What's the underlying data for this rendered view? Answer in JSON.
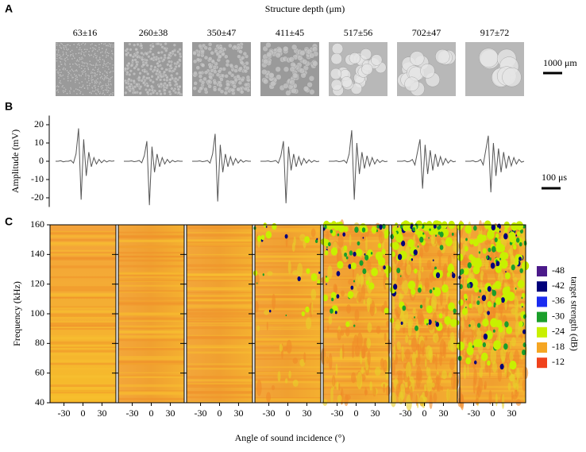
{
  "chart_data": [
    {
      "type": "image",
      "label": "A",
      "title": "Structure depth (μm)",
      "categories": [
        "63±16",
        "260±38",
        "350±47",
        "411±45",
        "517±56",
        "702±47",
        "917±72"
      ],
      "scale_bar": "1000 μm"
    },
    {
      "type": "line",
      "label": "B",
      "ylabel": "Amplitude (mV)",
      "ylim": [
        -25,
        25
      ],
      "yticks": [
        20,
        10,
        0,
        -10,
        -20
      ],
      "scale_bar": "100 μs",
      "color": "#555555",
      "series": [
        {
          "values": [
            0,
            0,
            0.3,
            -0.3,
            0,
            0,
            0.5,
            -1,
            4,
            18,
            -21,
            12,
            -8,
            5,
            -3,
            2,
            -1.5,
            1,
            -0.8,
            0.6,
            -0.4,
            0.3,
            0,
            0.2
          ]
        },
        {
          "values": [
            0,
            0,
            0,
            0.2,
            -0.2,
            0,
            0.4,
            -0.8,
            3,
            11,
            -24,
            8,
            -6,
            4,
            -3,
            2,
            -1.5,
            1,
            -0.8,
            0.5,
            -0.3,
            0.2,
            0,
            0
          ]
        },
        {
          "values": [
            0,
            0,
            0,
            0.2,
            -0.2,
            0,
            0.4,
            -1,
            4,
            15,
            -22,
            9,
            -6,
            4,
            -3,
            2.5,
            -2,
            1.5,
            -1,
            0.8,
            -0.5,
            0.3,
            0,
            0
          ]
        },
        {
          "values": [
            0,
            0,
            0,
            0.2,
            -0.2,
            0,
            0.4,
            -1,
            3,
            11,
            -23,
            8,
            -5,
            4,
            -3,
            2.5,
            -2,
            1.5,
            -1,
            0.8,
            -0.6,
            0.4,
            -0.2,
            0
          ]
        },
        {
          "values": [
            0,
            0,
            0,
            0.2,
            -0.2,
            0,
            0.5,
            -1,
            4,
            17,
            -21,
            10,
            -7,
            5,
            -4,
            3,
            -2.5,
            2,
            -1.5,
            1,
            -0.7,
            0.4,
            -0.2,
            0
          ]
        },
        {
          "values": [
            0,
            0,
            0,
            0.3,
            -0.3,
            0,
            1,
            -2,
            5,
            12,
            -15,
            9,
            -7,
            6,
            -5,
            4,
            -3,
            2.5,
            -2,
            1.5,
            -1,
            0.6,
            -0.3,
            0
          ]
        },
        {
          "values": [
            0,
            0,
            0,
            0.3,
            -0.3,
            0,
            1,
            -2,
            6,
            14,
            -17,
            10,
            -8,
            7,
            -6,
            5,
            -4,
            3,
            -2.5,
            2,
            -1.5,
            1,
            -0.5,
            0
          ]
        }
      ]
    },
    {
      "type": "heatmap",
      "label": "C",
      "ylabel": "Frequency (kHz)",
      "xlabel": "Angle of sound incidence (°)",
      "ylim": [
        40,
        160
      ],
      "yticks": [
        160,
        140,
        120,
        100,
        80,
        60,
        40
      ],
      "xlim": [
        -52,
        52
      ],
      "xticks": [
        -30,
        0,
        30
      ],
      "panels": 7,
      "legend_title": "target strength (dB)",
      "colorbar": [
        {
          "value": -48,
          "color": "#4b1a8a"
        },
        {
          "value": -42,
          "color": "#00007a"
        },
        {
          "value": -36,
          "color": "#1a2cf0"
        },
        {
          "value": -30,
          "color": "#1a9e2a"
        },
        {
          "value": -24,
          "color": "#c8f000"
        },
        {
          "value": -18,
          "color": "#f5a623"
        },
        {
          "value": -12,
          "color": "#f0421c"
        }
      ]
    }
  ]
}
